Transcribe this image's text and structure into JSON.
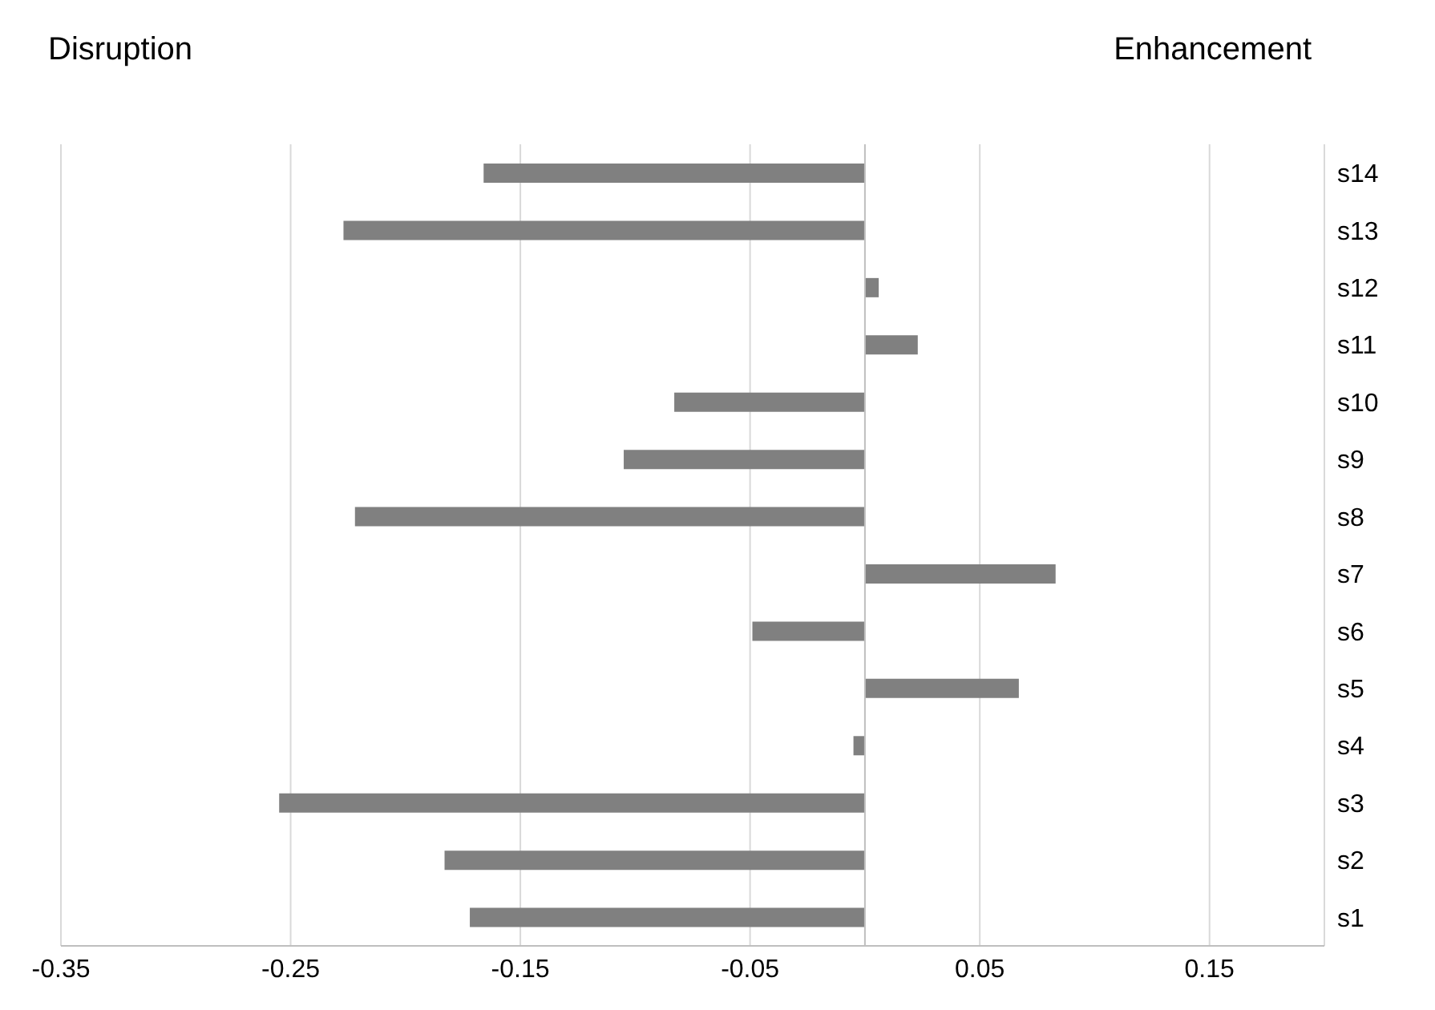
{
  "chart_data": {
    "type": "bar",
    "orientation": "horizontal",
    "annotations": [
      "Disruption",
      "Enhancement"
    ],
    "categories": [
      "s14",
      "s13",
      "s12",
      "s11",
      "s10",
      "s9",
      "s8",
      "s7",
      "s6",
      "s5",
      "s4",
      "s3",
      "s2",
      "s1"
    ],
    "values": [
      -0.166,
      -0.227,
      0.006,
      0.023,
      -0.083,
      -0.105,
      -0.222,
      0.083,
      -0.049,
      0.067,
      -0.005,
      -0.255,
      -0.183,
      -0.172
    ],
    "color": "#808080",
    "xlim": [
      -0.35,
      0.2
    ],
    "xticks": [
      -0.35,
      -0.25,
      -0.15,
      -0.05,
      0.05,
      0.15
    ],
    "grid": "x"
  }
}
